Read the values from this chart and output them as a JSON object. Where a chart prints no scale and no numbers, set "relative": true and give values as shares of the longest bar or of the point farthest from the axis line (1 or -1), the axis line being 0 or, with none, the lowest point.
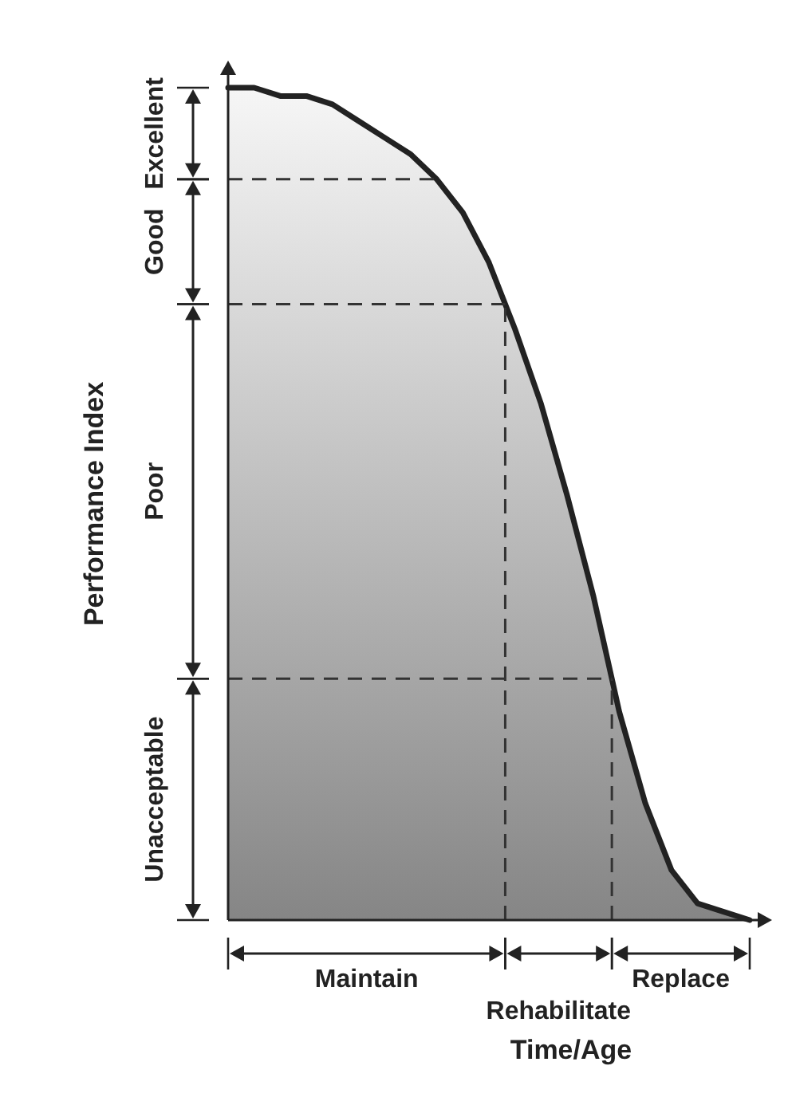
{
  "chart_data": {
    "type": "area",
    "relative": true,
    "xlabel": "Time/Age",
    "ylabel": "Performance Index",
    "categories": [
      null,
      null,
      null,
      null,
      null,
      null,
      null,
      null,
      null,
      null,
      null,
      null,
      null,
      null,
      null,
      null,
      null,
      null,
      null,
      null,
      null
    ],
    "series": [
      {
        "color": "#222222",
        "values": [
          1,
          1,
          0.99,
          0.99,
          0.98,
          0.96,
          0.94,
          0.92,
          0.89,
          0.85,
          0.79,
          0.71,
          0.62,
          0.51,
          0.39,
          0.25,
          0.14,
          0.06,
          0.02,
          0.01,
          0
        ]
      }
    ],
    "ref_lines": [
      {
        "axis": "y",
        "value": 0.89,
        "line_style": "dashed"
      },
      {
        "axis": "y",
        "value": 0.74,
        "line_style": "dashed"
      },
      {
        "axis": "y",
        "value": 0.29,
        "line_style": "dashed"
      }
    ],
    "annotations": [
      "Excellent",
      "Good",
      "Poor",
      "Unacceptable",
      "Maintain",
      "Rehabilitate",
      "Replace"
    ]
  }
}
